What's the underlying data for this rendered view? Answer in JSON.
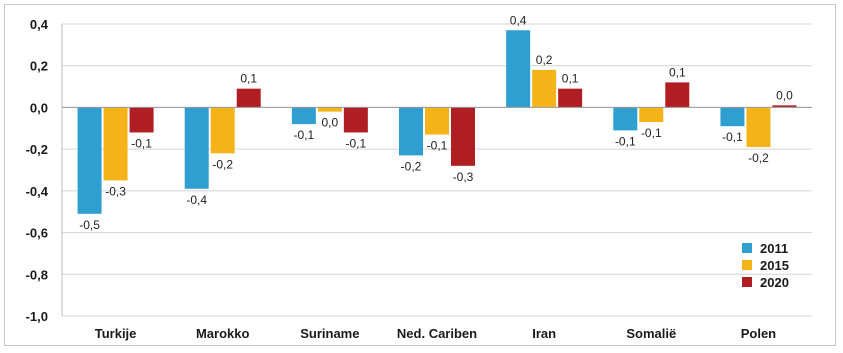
{
  "chart_data": {
    "type": "bar",
    "categories": [
      "Turkije",
      "Marokko",
      "Suriname",
      "Ned. Cariben",
      "Iran",
      "Somaliё",
      "Polen"
    ],
    "series": [
      {
        "name": "2011",
        "color": "#2e9fd0",
        "values": [
          -0.51,
          -0.39,
          -0.08,
          -0.23,
          0.37,
          -0.11,
          -0.09
        ],
        "labels": [
          "-0,5",
          "-0,4",
          "-0,1",
          "-0,2",
          "0,4",
          "-0,1",
          "-0,1"
        ]
      },
      {
        "name": "2015",
        "color": "#f5b31a",
        "values": [
          -0.35,
          -0.22,
          -0.02,
          -0.13,
          0.18,
          -0.07,
          -0.19
        ],
        "labels": [
          "-0,3",
          "-0,2",
          "0,0",
          "-0,1",
          "0,2",
          "-0,1",
          "-0,2"
        ]
      },
      {
        "name": "2020",
        "color": "#b01e23",
        "values": [
          -0.12,
          0.09,
          -0.12,
          -0.28,
          0.09,
          0.12,
          0.01
        ],
        "labels": [
          "-0,1",
          "0,1",
          "-0,1",
          "-0,3",
          "0,1",
          "0,1",
          "0,0"
        ]
      }
    ],
    "yticks": [
      0.4,
      0.2,
      0.0,
      -0.2,
      -0.4,
      -0.6,
      -0.8,
      -1.0
    ],
    "ytick_labels": [
      "0,4",
      "0,2",
      "0,0",
      "-0,2",
      "-0,4",
      "-0,6",
      "-0,8",
      "-1,0"
    ],
    "ylim": [
      -1.0,
      0.4
    ],
    "grid": true,
    "legend_position": "bottom-right",
    "title": "",
    "xlabel": "",
    "ylabel": ""
  }
}
